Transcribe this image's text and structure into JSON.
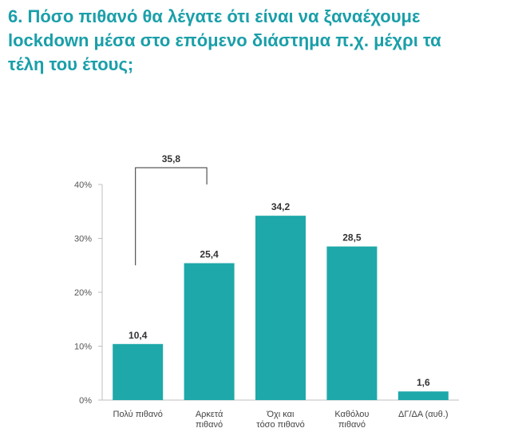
{
  "title_lines": [
    "6. Πόσο πιθανό θα λέγατε ότι είναι να ξαναέχουμε",
    "lockdown μέσα στο επόμενο διάστημα π.χ. μέχρι τα",
    "τέλη του έτους;"
  ],
  "colors": {
    "title": "#1a9fa9",
    "bar": "#1fa8a9",
    "axis": "#bfbfbf",
    "bracket": "#333333"
  },
  "chart_data": {
    "type": "bar",
    "categories": [
      [
        "Πολύ πιθανό"
      ],
      [
        "Αρκετά",
        "πιθανό"
      ],
      [
        "Όχι και",
        "τόσο πιθανό"
      ],
      [
        "Καθόλου",
        "πιθανό"
      ],
      [
        "ΔΓ/ΔΑ (αυθ.)"
      ]
    ],
    "values": [
      10.4,
      25.4,
      34.2,
      28.5,
      1.6
    ],
    "value_labels": [
      "10,4",
      "25,4",
      "34,2",
      "28,5",
      "1,6"
    ],
    "ylim": [
      0,
      40
    ],
    "yticks": [
      0,
      10,
      20,
      30,
      40
    ],
    "ytick_labels": [
      "0%",
      "10%",
      "20%",
      "30%",
      "40%"
    ],
    "grid": false,
    "annotation": {
      "label": "35,8",
      "value": 35.8,
      "spans_categories": [
        0,
        1
      ]
    }
  }
}
